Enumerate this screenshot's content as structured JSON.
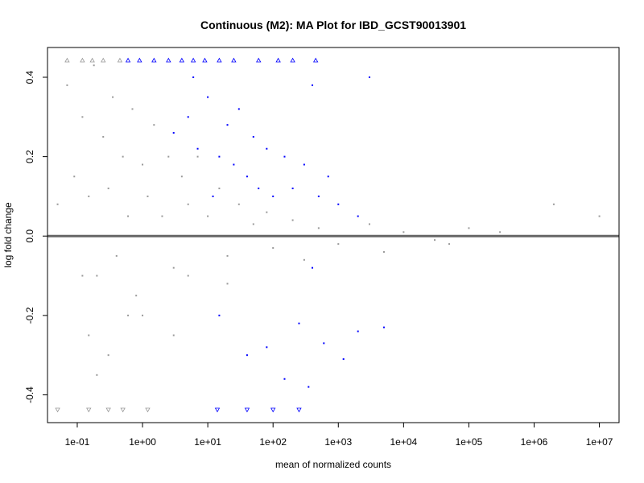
{
  "chart_data": {
    "type": "scatter",
    "title": "Continuous (M2): MA Plot for IBD_GCST90013901",
    "xlabel": "mean of normalized counts",
    "ylabel": "log fold change",
    "x_scale": "log10",
    "xlim": [
      0.035,
      20000000.0
    ],
    "ylim": [
      -0.47,
      0.475
    ],
    "x_ticks": [
      {
        "value": 0.1,
        "label": "1e-01"
      },
      {
        "value": 1,
        "label": "1e+00"
      },
      {
        "value": 10,
        "label": "1e+01"
      },
      {
        "value": 100,
        "label": "1e+02"
      },
      {
        "value": 1000,
        "label": "1e+03"
      },
      {
        "value": 10000,
        "label": "1e+04"
      },
      {
        "value": 100000,
        "label": "1e+05"
      },
      {
        "value": 1000000,
        "label": "1e+06"
      },
      {
        "value": 10000000,
        "label": "1e+07"
      }
    ],
    "y_ticks": [
      {
        "value": -0.4,
        "label": "-0.4"
      },
      {
        "value": -0.2,
        "label": "-0.2"
      },
      {
        "value": 0.0,
        "label": "0.0"
      },
      {
        "value": 0.2,
        "label": "0.2"
      },
      {
        "value": 0.4,
        "label": "0.4"
      }
    ],
    "reference_line": {
      "y": 0,
      "color": "#666666"
    },
    "series": [
      {
        "color": "#999999",
        "marker": "point",
        "points": [
          [
            0.05,
            0.08
          ],
          [
            0.07,
            0.38
          ],
          [
            0.09,
            0.15
          ],
          [
            0.12,
            0.3
          ],
          [
            0.15,
            0.1
          ],
          [
            0.18,
            0.43
          ],
          [
            0.2,
            -0.1
          ],
          [
            0.25,
            0.25
          ],
          [
            0.3,
            0.12
          ],
          [
            0.35,
            0.35
          ],
          [
            0.4,
            -0.05
          ],
          [
            0.5,
            0.2
          ],
          [
            0.6,
            0.05
          ],
          [
            0.7,
            0.32
          ],
          [
            0.8,
            -0.15
          ],
          [
            1.0,
            0.18
          ],
          [
            1.2,
            0.1
          ],
          [
            1.5,
            0.28
          ],
          [
            2.0,
            0.05
          ],
          [
            2.5,
            0.2
          ],
          [
            3.0,
            -0.08
          ],
          [
            4.0,
            0.15
          ],
          [
            5.0,
            0.08
          ],
          [
            7.0,
            0.2
          ],
          [
            10,
            0.05
          ],
          [
            15,
            0.12
          ],
          [
            20,
            -0.05
          ],
          [
            30,
            0.08
          ],
          [
            50,
            0.03
          ],
          [
            80,
            0.06
          ],
          [
            100,
            -0.03
          ],
          [
            200,
            0.04
          ],
          [
            500,
            0.02
          ],
          [
            1000,
            -0.02
          ],
          [
            3000,
            0.03
          ],
          [
            10000,
            0.01
          ],
          [
            30000,
            -0.01
          ],
          [
            100000,
            0.02
          ],
          [
            300000,
            0.01
          ],
          [
            2000000,
            0.08
          ],
          [
            10000000,
            0.05
          ],
          [
            0.15,
            -0.25
          ],
          [
            0.2,
            -0.35
          ],
          [
            0.3,
            -0.3
          ],
          [
            1.0,
            -0.2
          ],
          [
            3.0,
            -0.25
          ],
          [
            0.12,
            -0.1
          ],
          [
            0.6,
            -0.2
          ],
          [
            5.0,
            -0.1
          ],
          [
            20,
            -0.12
          ],
          [
            300,
            -0.06
          ],
          [
            5000,
            -0.04
          ],
          [
            50000,
            -0.02
          ]
        ]
      },
      {
        "color": "#0000ff",
        "marker": "point",
        "points": [
          [
            3,
            0.26
          ],
          [
            5,
            0.3
          ],
          [
            7,
            0.22
          ],
          [
            10,
            0.35
          ],
          [
            15,
            0.2
          ],
          [
            20,
            0.28
          ],
          [
            25,
            0.18
          ],
          [
            30,
            0.32
          ],
          [
            40,
            0.15
          ],
          [
            50,
            0.25
          ],
          [
            60,
            0.12
          ],
          [
            80,
            0.22
          ],
          [
            100,
            0.1
          ],
          [
            150,
            0.2
          ],
          [
            200,
            0.12
          ],
          [
            300,
            0.18
          ],
          [
            500,
            0.1
          ],
          [
            700,
            0.15
          ],
          [
            1000,
            0.08
          ],
          [
            2000,
            0.05
          ],
          [
            3000,
            0.4
          ],
          [
            400,
            0.38
          ],
          [
            6,
            0.4
          ],
          [
            12,
            0.1
          ],
          [
            15,
            -0.2
          ],
          [
            40,
            -0.3
          ],
          [
            80,
            -0.28
          ],
          [
            150,
            -0.36
          ],
          [
            250,
            -0.22
          ],
          [
            350,
            -0.38
          ],
          [
            600,
            -0.27
          ],
          [
            1200,
            -0.31
          ],
          [
            2000,
            -0.24
          ],
          [
            5000,
            -0.23
          ],
          [
            400,
            -0.08
          ]
        ]
      }
    ],
    "clipped_points": [
      {
        "x": 0.07,
        "direction": "up",
        "color": "#999999"
      },
      {
        "x": 0.12,
        "direction": "up",
        "color": "#999999"
      },
      {
        "x": 0.17,
        "direction": "up",
        "color": "#999999"
      },
      {
        "x": 0.25,
        "direction": "up",
        "color": "#999999"
      },
      {
        "x": 0.45,
        "direction": "up",
        "color": "#999999"
      },
      {
        "x": 0.6,
        "direction": "up",
        "color": "#0000ff"
      },
      {
        "x": 0.9,
        "direction": "up",
        "color": "#0000ff"
      },
      {
        "x": 1.5,
        "direction": "up",
        "color": "#0000ff"
      },
      {
        "x": 2.5,
        "direction": "up",
        "color": "#0000ff"
      },
      {
        "x": 4.0,
        "direction": "up",
        "color": "#0000ff"
      },
      {
        "x": 6.0,
        "direction": "up",
        "color": "#0000ff"
      },
      {
        "x": 9.0,
        "direction": "up",
        "color": "#0000ff"
      },
      {
        "x": 15,
        "direction": "up",
        "color": "#0000ff"
      },
      {
        "x": 25,
        "direction": "up",
        "color": "#0000ff"
      },
      {
        "x": 60,
        "direction": "up",
        "color": "#0000ff"
      },
      {
        "x": 120,
        "direction": "up",
        "color": "#0000ff"
      },
      {
        "x": 200,
        "direction": "up",
        "color": "#0000ff"
      },
      {
        "x": 450,
        "direction": "up",
        "color": "#0000ff"
      },
      {
        "x": 0.05,
        "direction": "down",
        "color": "#999999"
      },
      {
        "x": 0.15,
        "direction": "down",
        "color": "#999999"
      },
      {
        "x": 0.3,
        "direction": "down",
        "color": "#999999"
      },
      {
        "x": 0.5,
        "direction": "down",
        "color": "#999999"
      },
      {
        "x": 1.2,
        "direction": "down",
        "color": "#999999"
      },
      {
        "x": 14,
        "direction": "down",
        "color": "#0000ff"
      },
      {
        "x": 40,
        "direction": "down",
        "color": "#0000ff"
      },
      {
        "x": 100,
        "direction": "down",
        "color": "#0000ff"
      },
      {
        "x": 250,
        "direction": "down",
        "color": "#0000ff"
      }
    ],
    "grid": false,
    "legend": "none"
  }
}
